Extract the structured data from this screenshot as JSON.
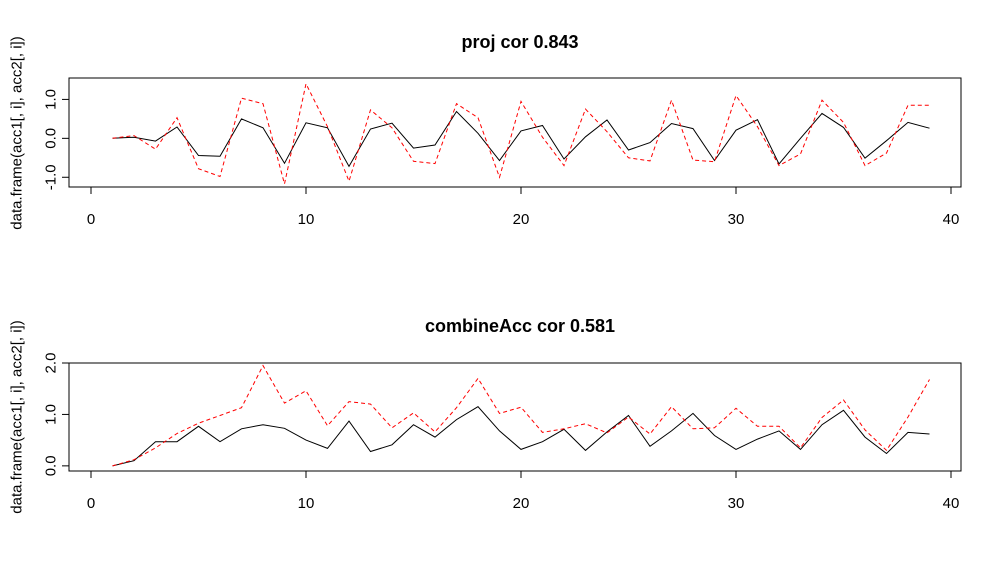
{
  "chart_data": [
    {
      "type": "line",
      "title": "proj cor 0.843",
      "ylabel": "data.frame(acc1[, i], acc2[, i])",
      "xlabel": "",
      "xlim": [
        0,
        40
      ],
      "ylim": [
        -1.25,
        1.55
      ],
      "xticks": [
        0,
        10,
        20,
        30,
        40
      ],
      "xtick_labels": [
        "0",
        "10",
        "20",
        "30",
        "40"
      ],
      "yticks": [
        -1,
        0,
        1
      ],
      "ytick_labels": [
        "-1.0",
        "0.0",
        "1.0"
      ],
      "grid": false,
      "x": [
        1,
        2,
        3,
        4,
        5,
        6,
        7,
        8,
        9,
        10,
        11,
        12,
        13,
        14,
        15,
        16,
        17,
        18,
        19,
        20,
        21,
        22,
        23,
        24,
        25,
        26,
        27,
        28,
        29,
        30,
        31,
        32,
        33,
        34,
        35,
        36,
        37,
        38,
        39
      ],
      "series": [
        {
          "color": "#000000",
          "dash": "solid",
          "values": [
            0.0,
            0.03,
            -0.07,
            0.29,
            -0.44,
            -0.46,
            0.5,
            0.27,
            -0.64,
            0.4,
            0.27,
            -0.72,
            0.24,
            0.39,
            -0.25,
            -0.17,
            0.69,
            0.13,
            -0.57,
            0.19,
            0.33,
            -0.53,
            0.04,
            0.47,
            -0.3,
            -0.11,
            0.38,
            0.25,
            -0.57,
            0.21,
            0.48,
            -0.66,
            0.0,
            0.64,
            0.28,
            -0.51,
            -0.06,
            0.41,
            0.26
          ]
        },
        {
          "color": "#ff0000",
          "dash": "dashed",
          "values": [
            0.0,
            0.07,
            -0.28,
            0.53,
            -0.78,
            -0.98,
            1.03,
            0.89,
            -1.17,
            1.4,
            0.3,
            -1.1,
            0.73,
            0.27,
            -0.59,
            -0.65,
            0.89,
            0.53,
            -1.0,
            0.95,
            0.03,
            -0.7,
            0.75,
            0.17,
            -0.5,
            -0.58,
            0.98,
            -0.56,
            -0.6,
            1.1,
            0.3,
            -0.7,
            -0.4,
            0.98,
            0.41,
            -0.7,
            -0.38,
            0.85,
            0.85
          ]
        }
      ]
    },
    {
      "type": "line",
      "title": "combineAcc cor 0.581",
      "ylabel": "data.frame(acc1[, i], acc2[, i])",
      "xlabel": "",
      "xlim": [
        0,
        40
      ],
      "ylim": [
        -0.1,
        2.0
      ],
      "xticks": [
        0,
        10,
        20,
        30,
        40
      ],
      "xtick_labels": [
        "0",
        "10",
        "20",
        "30",
        "40"
      ],
      "yticks": [
        0,
        1,
        2
      ],
      "ytick_labels": [
        "0.0",
        "1.0",
        "2.0"
      ],
      "grid": false,
      "x": [
        1,
        2,
        3,
        4,
        5,
        6,
        7,
        8,
        9,
        10,
        11,
        12,
        13,
        14,
        15,
        16,
        17,
        18,
        19,
        20,
        21,
        22,
        23,
        24,
        25,
        26,
        27,
        28,
        29,
        30,
        31,
        32,
        33,
        34,
        35,
        36,
        37,
        38,
        39
      ],
      "series": [
        {
          "color": "#000000",
          "dash": "solid",
          "values": [
            0.0,
            0.1,
            0.47,
            0.47,
            0.77,
            0.47,
            0.72,
            0.8,
            0.73,
            0.5,
            0.34,
            0.87,
            0.28,
            0.41,
            0.8,
            0.56,
            0.9,
            1.15,
            0.68,
            0.32,
            0.47,
            0.71,
            0.3,
            0.66,
            0.98,
            0.38,
            0.68,
            1.02,
            0.59,
            0.32,
            0.52,
            0.68,
            0.32,
            0.8,
            1.08,
            0.56,
            0.24,
            0.65,
            0.62
          ]
        },
        {
          "color": "#ff0000",
          "dash": "dashed",
          "values": [
            0.0,
            0.12,
            0.35,
            0.63,
            0.83,
            0.98,
            1.13,
            1.95,
            1.22,
            1.46,
            0.78,
            1.25,
            1.2,
            0.74,
            1.03,
            0.66,
            1.13,
            1.7,
            1.02,
            1.14,
            0.65,
            0.72,
            0.82,
            0.64,
            0.95,
            0.62,
            1.15,
            0.72,
            0.74,
            1.12,
            0.77,
            0.77,
            0.35,
            0.94,
            1.28,
            0.7,
            0.3,
            0.95,
            1.68
          ]
        }
      ]
    }
  ]
}
